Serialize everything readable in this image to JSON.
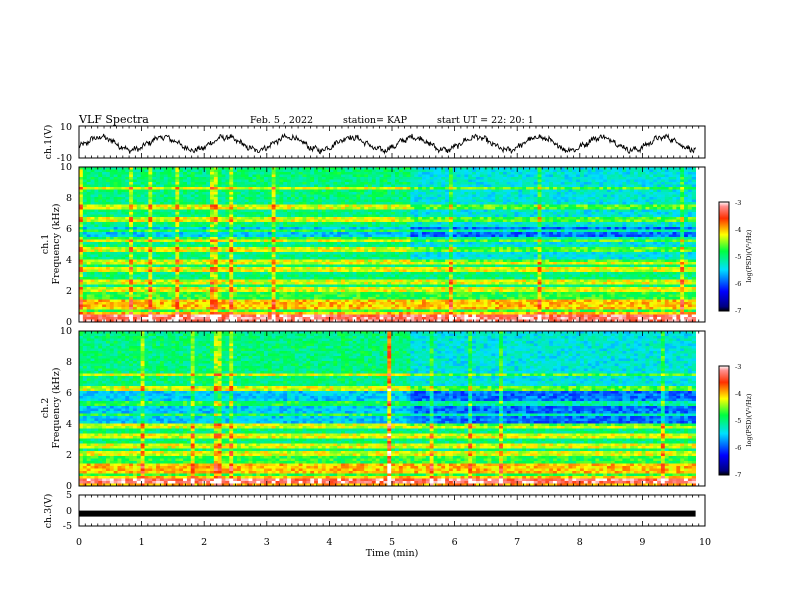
{
  "header": {
    "title": "VLF Spectra",
    "date": "Feb. 5  , 2022",
    "station": "station= KAP",
    "start_ut": "start  UT  =   22: 20: 1"
  },
  "chart_data": [
    {
      "type": "line",
      "panel": "ch1-waveform",
      "ylabel": "ch.1(V)",
      "ylim": [
        -10,
        10
      ],
      "yticks": [
        "10",
        "-10"
      ],
      "xlim": [
        0,
        10
      ],
      "series_color": "#000000",
      "waveform": {
        "mean": -1,
        "amplitude": 4,
        "cycles": 10,
        "x_end": 9.85
      }
    },
    {
      "type": "heatmap",
      "panel": "ch1-spectrogram",
      "ylabel": "ch.1\nFrequency (kHz)",
      "ylim": [
        0,
        10
      ],
      "yticks": [
        "0",
        "2",
        "4",
        "6",
        "8",
        "10"
      ],
      "xlim": [
        0,
        10
      ],
      "x_end": 9.85,
      "colorbar": {
        "label": "log(PSD)(V²/Hz)",
        "range": [
          -7,
          -3
        ],
        "ticks": [
          "-3",
          "-4",
          "-5",
          "-6",
          "-7"
        ]
      },
      "bands_khz": [
        0.2,
        0.5,
        1.0,
        1.3,
        2.1,
        2.6,
        3.4,
        3.9,
        4.7,
        5.3,
        5.9,
        6.6,
        7.4,
        8.6
      ],
      "quiet_band_khz": [
        5.4,
        6.2
      ],
      "transition_min": 5.3
    },
    {
      "type": "heatmap",
      "panel": "ch2-spectrogram",
      "ylabel": "ch.2\nFrequency (kHz)",
      "ylim": [
        0,
        10
      ],
      "yticks": [
        "0",
        "2",
        "4",
        "6",
        "8",
        "10"
      ],
      "xlim": [
        0,
        10
      ],
      "x_end": 9.85,
      "colorbar": {
        "label": "log(PSD)(V²/Hz)",
        "range": [
          -7,
          -3
        ],
        "ticks": [
          "-3",
          "-4",
          "-5",
          "-6",
          "-7"
        ]
      },
      "bands_khz": [
        0.3,
        0.6,
        1.0,
        1.3,
        2.1,
        2.6,
        3.2,
        3.9,
        4.6,
        5.3,
        6.3,
        7.2
      ],
      "quiet_band_khz": [
        4.0,
        6.2
      ],
      "transition_min": 5.3
    },
    {
      "type": "line",
      "panel": "ch3-waveform",
      "ylabel": "ch.3(V)",
      "ylim": [
        -5,
        5
      ],
      "yticks": [
        "5",
        "0",
        "-5"
      ],
      "xlim": [
        0,
        10
      ],
      "level_v": -1,
      "x_end": 9.85
    }
  ],
  "xaxis": {
    "label": "Time  (min)",
    "ticks": [
      "0",
      "1",
      "2",
      "3",
      "4",
      "5",
      "6",
      "7",
      "8",
      "9",
      "10"
    ]
  }
}
